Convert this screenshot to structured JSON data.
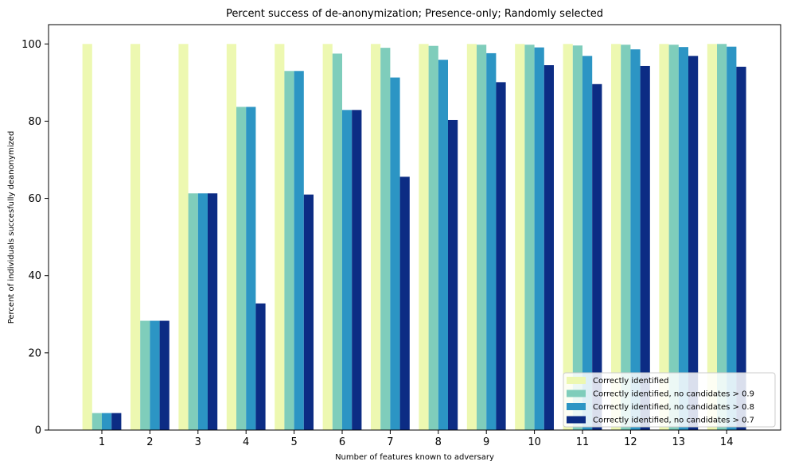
{
  "chart_data": {
    "type": "bar",
    "title": "Percent success of de-anonymization; Presence-only; Randomly selected",
    "xlabel": "Number of features known to adversary",
    "ylabel": "Percent of individuals succesfully deanonymized",
    "categories": [
      "1",
      "2",
      "3",
      "4",
      "5",
      "6",
      "7",
      "8",
      "9",
      "10",
      "11",
      "12",
      "13",
      "14"
    ],
    "ylim": [
      0,
      105
    ],
    "yticks": [
      0,
      20,
      40,
      60,
      80,
      100
    ],
    "legend_position": "bottom-right",
    "grid": false,
    "series": [
      {
        "name": "Correctly identified",
        "color": "#edf8b1",
        "values": [
          100,
          100,
          100,
          100,
          100,
          100,
          100,
          100,
          100,
          100,
          100,
          100,
          100,
          100
        ]
      },
      {
        "name": "Correctly identified, no candidates > 0.9",
        "color": "#7fcdbb",
        "values": [
          4.4,
          28.3,
          61.3,
          83.7,
          93.0,
          97.5,
          99.0,
          99.5,
          99.8,
          99.8,
          99.6,
          99.8,
          99.8,
          100
        ]
      },
      {
        "name": "Correctly identified, no candidates > 0.8",
        "color": "#2c95c4",
        "values": [
          4.4,
          28.3,
          61.3,
          83.7,
          93.0,
          82.9,
          91.3,
          95.9,
          97.6,
          99.1,
          96.9,
          98.6,
          99.2,
          99.3
        ]
      },
      {
        "name": "Correctly identified, no candidates > 0.7",
        "color": "#0c2c84",
        "values": [
          4.4,
          28.3,
          61.3,
          32.8,
          61.0,
          82.9,
          65.6,
          80.3,
          90.1,
          94.5,
          89.6,
          94.3,
          96.9,
          94.1
        ]
      }
    ]
  }
}
